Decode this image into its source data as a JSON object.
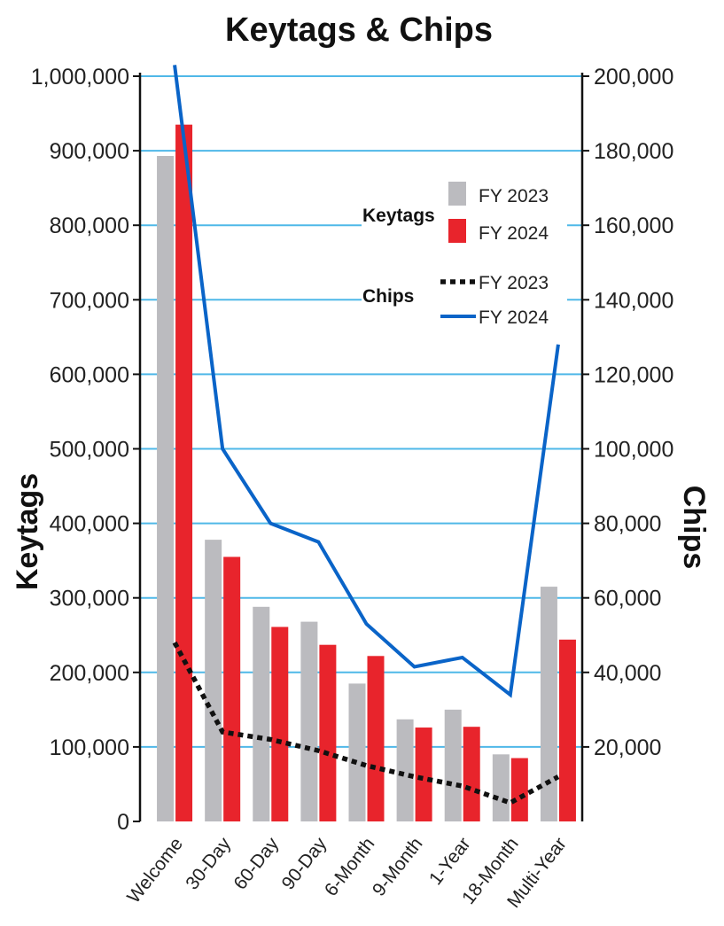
{
  "chart_data": {
    "type": "bar",
    "title": "Keytags & Chips",
    "categories": [
      "Welcome",
      "30-Day",
      "60-Day",
      "90-Day",
      "6-Month",
      "9-Month",
      "1-Year",
      "18-Month",
      "Multi-Year"
    ],
    "y_left": {
      "label": "Keytags",
      "min": 0,
      "max": 1000000,
      "ticks": [
        {
          "value": 0,
          "label": "0"
        },
        {
          "value": 100000,
          "label": "100,000"
        },
        {
          "value": 200000,
          "label": "200,000"
        },
        {
          "value": 300000,
          "label": "300,000"
        },
        {
          "value": 400000,
          "label": "400,000"
        },
        {
          "value": 500000,
          "label": "500,000"
        },
        {
          "value": 600000,
          "label": "600,000"
        },
        {
          "value": 700000,
          "label": "700,000"
        },
        {
          "value": 800000,
          "label": "800,000"
        },
        {
          "value": 900000,
          "label": "900,000"
        },
        {
          "value": 1000000,
          "label": "1,000,000"
        }
      ]
    },
    "y_right": {
      "label": "Chips",
      "min": 0,
      "max": 200000,
      "ticks": [
        {
          "value": 20000,
          "label": "20,000"
        },
        {
          "value": 40000,
          "label": "40,000"
        },
        {
          "value": 60000,
          "label": "60,000"
        },
        {
          "value": 80000,
          "label": "80,000"
        },
        {
          "value": 100000,
          "label": "100,000"
        },
        {
          "value": 120000,
          "label": "120,000"
        },
        {
          "value": 140000,
          "label": "140,000"
        },
        {
          "value": 160000,
          "label": "160,000"
        },
        {
          "value": 180000,
          "label": "180,000"
        },
        {
          "value": 200000,
          "label": "200,000"
        }
      ]
    },
    "keytag_series": [
      {
        "name": "FY 2023",
        "color": "#bbbbbf",
        "values": [
          893000,
          378000,
          288000,
          268000,
          185000,
          137000,
          150000,
          90000,
          315000
        ]
      },
      {
        "name": "FY 2024",
        "color": "#e8242c",
        "values": [
          935000,
          355000,
          261000,
          237000,
          222000,
          126000,
          127000,
          85000,
          244000
        ]
      }
    ],
    "chip_series": [
      {
        "name": "FY 2023",
        "color": "#111111",
        "style": "dotted",
        "values": [
          48000,
          24000,
          22000,
          19000,
          15000,
          12000,
          9500,
          5000,
          12000
        ]
      },
      {
        "name": "FY 2024",
        "color": "#0a64c8",
        "style": "solid",
        "values": [
          203000,
          100000,
          80000,
          75000,
          53000,
          41500,
          44000,
          34000,
          128000
        ]
      }
    ],
    "legend": {
      "position": "top-right",
      "keytags_label": "Keytags",
      "chips_label": "Chips"
    },
    "grid": true,
    "grid_color": "#4fb8e8"
  }
}
